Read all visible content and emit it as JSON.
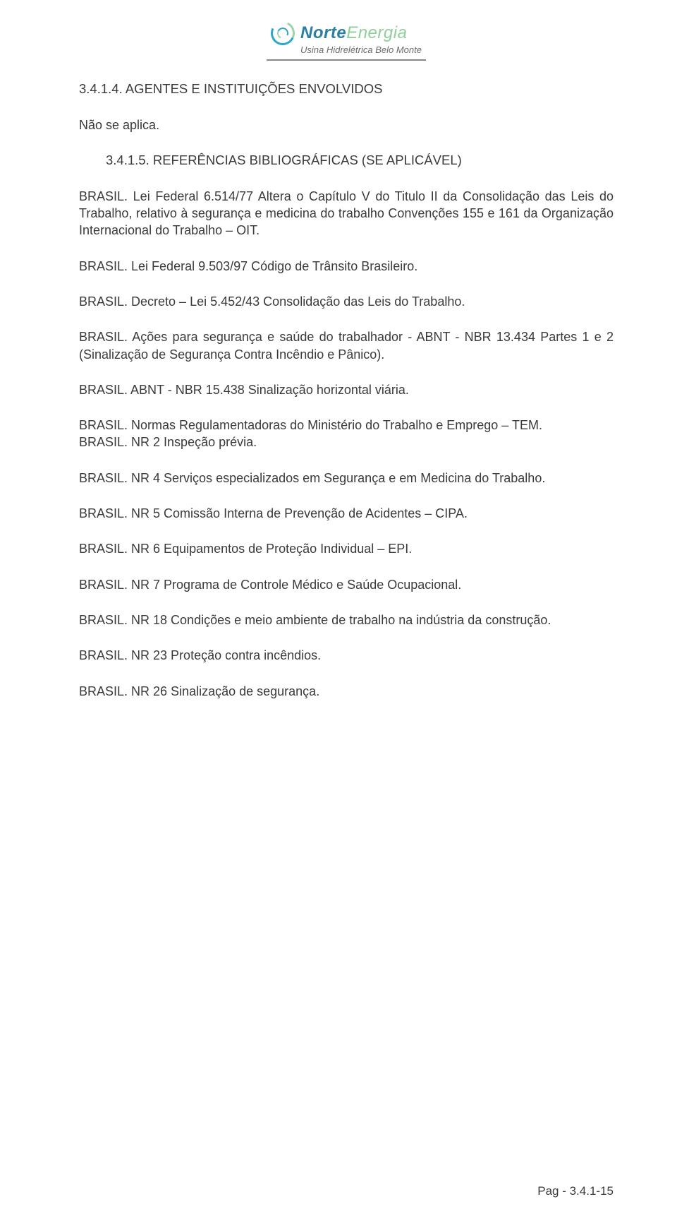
{
  "logo": {
    "brand_first": "Norte",
    "brand_second": "Energia",
    "subtitle": "Usina Hidrelétrica Belo Monte"
  },
  "sections": {
    "s1_heading": "3.4.1.4.  AGENTES E INSTITUIÇÕES ENVOLVIDOS",
    "s1_body": "Não se aplica.",
    "s2_heading": "3.4.1.5.  REFERÊNCIAS BIBLIOGRÁFICAS (SE APLICÁVEL)"
  },
  "refs": {
    "r1": "BRASIL. Lei Federal 6.514/77 Altera o Capítulo V do Titulo II da Consolidação das Leis do Trabalho, relativo à segurança e medicina do trabalho Convenções 155 e 161 da Organização Internacional do Trabalho – OIT.",
    "r2": "BRASIL. Lei Federal 9.503/97 Código de Trânsito Brasileiro.",
    "r3": "BRASIL. Decreto – Lei 5.452/43 Consolidação das Leis do Trabalho.",
    "r4": "BRASIL. Ações para segurança e saúde do trabalhador - ABNT - NBR 13.434 Partes 1 e 2 (Sinalização de Segurança Contra Incêndio e Pânico).",
    "r5": "BRASIL. ABNT - NBR 15.438 Sinalização horizontal viária.",
    "r6a": "BRASIL. Normas Regulamentadoras do Ministério do Trabalho e Emprego – TEM.",
    "r6b": "BRASIL. NR 2 Inspeção prévia.",
    "r7": "BRASIL. NR 4 Serviços especializados em Segurança e em Medicina do Trabalho.",
    "r8": "BRASIL. NR 5 Comissão Interna de Prevenção de Acidentes – CIPA.",
    "r9": "BRASIL. NR 6 Equipamentos de Proteção Individual – EPI.",
    "r10": "BRASIL. NR 7 Programa de Controle Médico e Saúde Ocupacional.",
    "r11": "BRASIL. NR 18 Condições e meio ambiente de trabalho na indústria da construção.",
    "r12": "BRASIL. NR 23 Proteção contra incêndios.",
    "r13": "BRASIL. NR 26 Sinalização de segurança."
  },
  "footer": {
    "page_label": "Pag - 3.4.1-15"
  },
  "colors": {
    "text": "#3a3a3a",
    "brand_blue": "#2a7fa3",
    "brand_green": "#8fcf9a",
    "background": "#ffffff"
  },
  "typography": {
    "body_fontsize_pt": 14,
    "heading_fontsize_pt": 14,
    "font_family": "Arial"
  }
}
